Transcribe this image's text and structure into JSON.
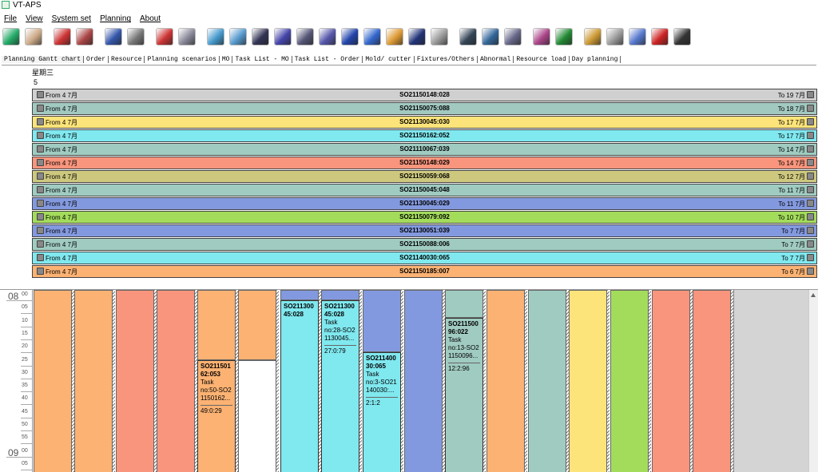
{
  "window": {
    "title": "VT-APS"
  },
  "menu": [
    "File",
    "View",
    "System set",
    "Planning",
    "About"
  ],
  "tabs": [
    "Planning Gantt chart",
    "Order",
    "Resource",
    "Planning  scenarios",
    "MO",
    "Task List - MO",
    "Task List - Order",
    "Mold/ cutter",
    "Fixtures/Others",
    "Abnormal",
    "Resource load",
    "Day planning"
  ],
  "day_header": {
    "weekday": "星期三",
    "day": "5"
  },
  "rows": [
    {
      "from": "From 4 7月",
      "order": "SO21150148:028",
      "to": "To 19 7月",
      "color": "#d0d0d0"
    },
    {
      "from": "From 4 7月",
      "order": "SO21150075:088",
      "to": "To 18 7月",
      "color": "#a2c9c0"
    },
    {
      "from": "From 4 7月",
      "order": "SO21130045:030",
      "to": "To 17 7月",
      "color": "#fce47a"
    },
    {
      "from": "From 4 7月",
      "order": "SO21150162:052",
      "to": "To 17 7月",
      "color": "#80e8ef"
    },
    {
      "from": "From 4 7月",
      "order": "SO21110067:039",
      "to": "To 14 7月",
      "color": "#9fcbc0"
    },
    {
      "from": "From 4 7月",
      "order": "SO21150148:029",
      "to": "To 14 7月",
      "color": "#f9957d"
    },
    {
      "from": "From 4 7月",
      "order": "SO21150059:068",
      "to": "To 12 7月",
      "color": "#cdc87e"
    },
    {
      "from": "From 4 7月",
      "order": "SO21150045:048",
      "to": "To 11 7月",
      "color": "#9fcbc0"
    },
    {
      "from": "From 4 7月",
      "order": "SO21130045:029",
      "to": "To 11 7月",
      "color": "#8399df"
    },
    {
      "from": "From 4 7月",
      "order": "SO21150079:092",
      "to": "To 10 7月",
      "color": "#a3dc5b"
    },
    {
      "from": "From 4 7月",
      "order": "SO21130051:039",
      "to": "To 7 7月",
      "color": "#8399df"
    },
    {
      "from": "From 4 7月",
      "order": "SO21150088:006",
      "to": "To 7 7月",
      "color": "#a0cbc0"
    },
    {
      "from": "From 4 7月",
      "order": "SO21140030:065",
      "to": "To 7 7月",
      "color": "#80e8ef"
    },
    {
      "from": "From 4 7月",
      "order": "SO21150185:007",
      "to": "To 6 7月",
      "color": "#fbb273"
    }
  ],
  "time_axis": {
    "hours": [
      {
        "label": "08",
        "minutes": [
          "00",
          "05",
          "10",
          "15",
          "20",
          "25",
          "30",
          "35",
          "40",
          "45",
          "50",
          "55"
        ]
      },
      {
        "label": "09",
        "minutes": [
          "00",
          "05"
        ]
      }
    ]
  },
  "tasks": [
    {
      "lines": [
        "SO211501",
        "62:053",
        "Task",
        "no:50-SO2",
        "1150162...",
        "49:0:29"
      ]
    },
    {
      "lines": [
        "SO211300",
        "45:028"
      ]
    },
    {
      "lines": [
        "SO211300",
        "45:028",
        "Task",
        "no:28-SO2",
        "1130045...",
        "27:0:79"
      ]
    },
    {
      "lines": [
        "SO211400",
        "30:065",
        "Task",
        "no:3-SO21",
        "140030:...",
        "2:1:2"
      ]
    },
    {
      "lines": [
        "SO211500",
        "96:022",
        "Task",
        "no:13-SO2",
        "1150096...",
        "12:2:96"
      ]
    }
  ]
}
